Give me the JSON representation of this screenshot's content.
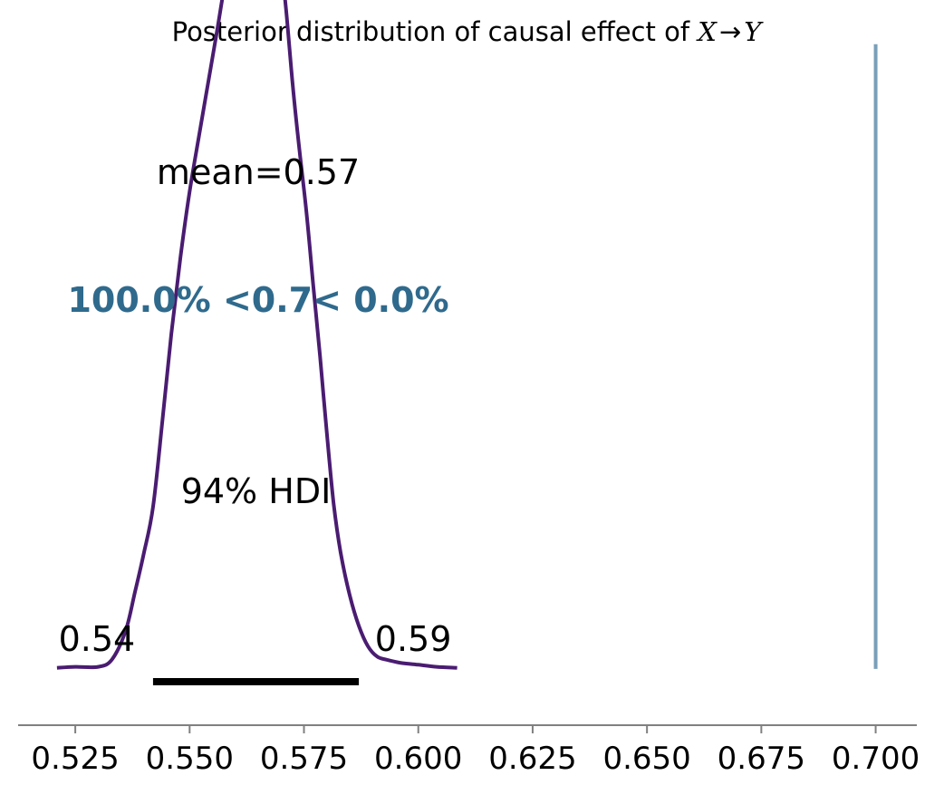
{
  "chart_data": {
    "type": "density",
    "title": {
      "text": "Posterior distribution of causal effect of ",
      "math_left": "X",
      "arrow": "→",
      "math_right": "Y"
    },
    "xlim": [
      0.5125,
      0.709
    ],
    "ylim": [
      -0.0055,
      0.06
    ],
    "grid": false,
    "xticks": [
      0.525,
      0.55,
      0.575,
      0.6,
      0.625,
      0.65,
      0.675,
      0.7
    ],
    "xtick_labels": [
      "0.525",
      "0.550",
      "0.575",
      "0.600",
      "0.625",
      "0.650",
      "0.675",
      "0.700"
    ],
    "density": {
      "color": "#4a1c71",
      "x": [
        0.521,
        0.525,
        0.53,
        0.533,
        0.536,
        0.538,
        0.54,
        0.542,
        0.544,
        0.546,
        0.548,
        0.55,
        0.552,
        0.554,
        0.556,
        0.558,
        0.5605,
        0.562,
        0.5635,
        0.565,
        0.5665,
        0.568,
        0.5695,
        0.571,
        0.5725,
        0.574,
        0.5755,
        0.577,
        0.5785,
        0.58,
        0.5815,
        0.583,
        0.585,
        0.587,
        0.589,
        0.591,
        0.593,
        0.596,
        0.6,
        0.604,
        0.6085
      ],
      "y": [
        0.0001,
        0.0002,
        0.0002,
        0.0009,
        0.0037,
        0.0074,
        0.0113,
        0.0158,
        0.024,
        0.0327,
        0.0402,
        0.0466,
        0.0519,
        0.0571,
        0.0623,
        0.0676,
        0.0725,
        0.0757,
        0.0775,
        0.0783,
        0.0776,
        0.0752,
        0.0708,
        0.0648,
        0.0572,
        0.0507,
        0.0448,
        0.0376,
        0.0306,
        0.023,
        0.0161,
        0.0114,
        0.0072,
        0.0042,
        0.0022,
        0.0012,
        0.0009,
        0.0006,
        0.0004,
        0.0002,
        0.0001
      ]
    },
    "hdi": {
      "probability_label": "94% HDI",
      "lower": 0.542,
      "upper": 0.587,
      "lower_label": "0.54",
      "upper_label": "0.59"
    },
    "mean": {
      "value": 0.565,
      "label": "mean=0.57"
    },
    "reference": {
      "value": 0.7,
      "color": "#7a9fb8",
      "line_range": [
        0,
        0.061
      ],
      "label": "100.0% <0.7< 0.0%",
      "label_color": "#2f6a8d"
    }
  }
}
